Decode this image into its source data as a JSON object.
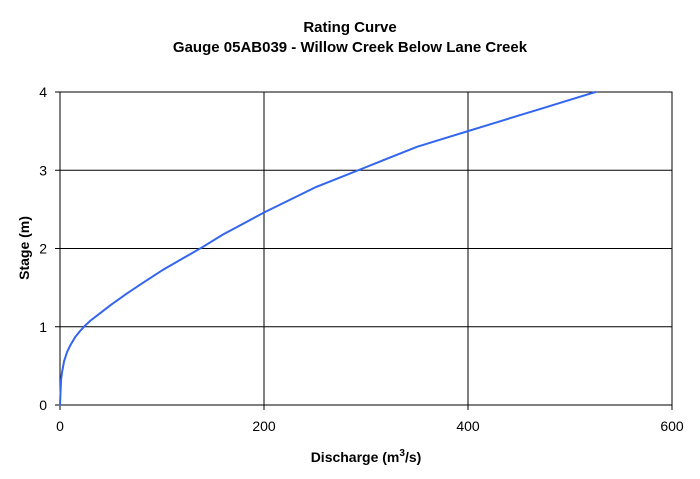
{
  "chart_data": {
    "type": "line",
    "title": "Rating Curve",
    "subtitle": "Gauge 05AB039 - Willow Creek Below Lane Creek",
    "xlabel": "Discharge (m³/s)",
    "xlabel_main": "Discharge (m",
    "xlabel_sup": "3",
    "xlabel_tail": "/s)",
    "ylabel": "Stage (m)",
    "xlim": [
      0,
      600
    ],
    "ylim": [
      0,
      4
    ],
    "xticks": [
      0,
      200,
      400,
      600
    ],
    "yticks": [
      0,
      1,
      2,
      3,
      4
    ],
    "grid": true,
    "legend": "none",
    "series": [
      {
        "color": "#3366ee",
        "x": [
          0,
          1,
          2,
          4,
          7,
          10,
          15,
          20,
          25,
          30,
          40,
          50,
          65,
          80,
          100,
          120,
          140,
          160,
          180,
          200,
          225,
          250,
          275,
          300,
          325,
          350,
          375,
          400,
          425,
          450,
          475,
          500,
          525
        ],
        "y": [
          0,
          0.32,
          0.42,
          0.56,
          0.68,
          0.76,
          0.87,
          0.95,
          1.02,
          1.08,
          1.18,
          1.28,
          1.42,
          1.55,
          1.72,
          1.87,
          2.02,
          2.18,
          2.32,
          2.46,
          2.62,
          2.78,
          2.91,
          3.04,
          3.17,
          3.3,
          3.4,
          3.5,
          3.6,
          3.7,
          3.8,
          3.9,
          4.0
        ]
      }
    ]
  }
}
